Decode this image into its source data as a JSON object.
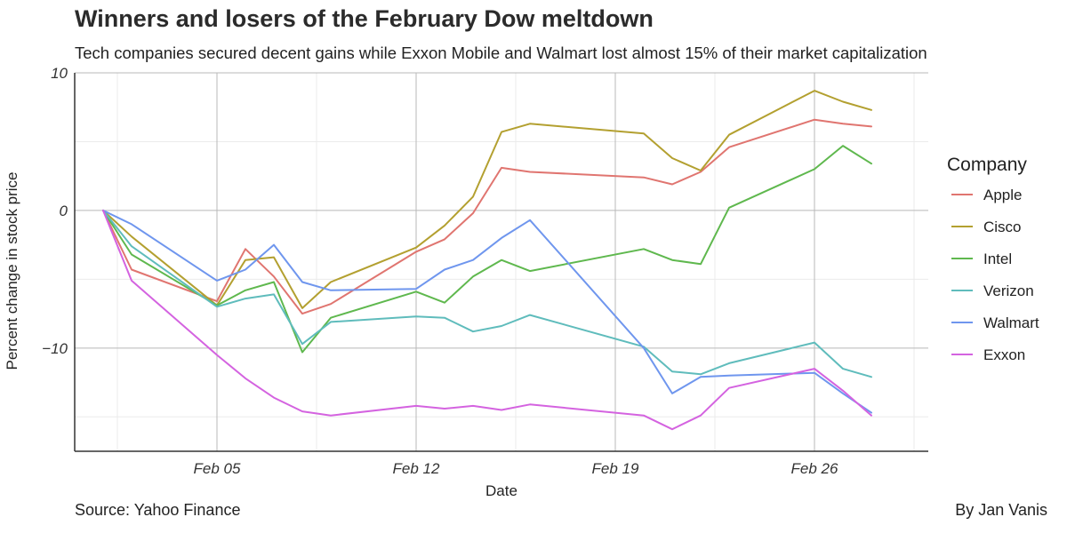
{
  "title": "Winners and losers of the February Dow meltdown",
  "subtitle": "Tech companies secured decent gains while Exxon Mobile and Walmart lost almost 15% of their market capitalization",
  "caption_left": "Source: Yahoo Finance",
  "caption_right": "By Jan Vanis",
  "chart_data": {
    "type": "line",
    "xlabel": "Date",
    "ylabel": "Percent change in stock price",
    "x_dates": [
      "2018-02-01",
      "2018-02-02",
      "2018-02-05",
      "2018-02-06",
      "2018-02-07",
      "2018-02-08",
      "2018-02-09",
      "2018-02-12",
      "2018-02-13",
      "2018-02-14",
      "2018-02-15",
      "2018-02-16",
      "2018-02-20",
      "2018-02-21",
      "2018-02-22",
      "2018-02-23",
      "2018-02-26",
      "2018-02-27",
      "2018-02-28"
    ],
    "xlim": [
      "2018-01-31",
      "2018-03-02"
    ],
    "ylim": [
      -17.5,
      10
    ],
    "x_ticks": [
      {
        "date": "2018-02-05",
        "label": "Feb 05"
      },
      {
        "date": "2018-02-12",
        "label": "Feb 12"
      },
      {
        "date": "2018-02-19",
        "label": "Feb 19"
      },
      {
        "date": "2018-02-26",
        "label": "Feb 26"
      }
    ],
    "y_ticks": [
      {
        "value": 10,
        "label": "10"
      },
      {
        "value": 0,
        "label": "0"
      },
      {
        "value": -10,
        "label": "−10"
      }
    ],
    "grid": true,
    "legend_title": "Company",
    "legend_position": "right",
    "series": [
      {
        "name": "Apple",
        "color": "#e07570",
        "values": [
          0,
          -4.3,
          -6.6,
          -2.8,
          -4.8,
          -7.5,
          -6.8,
          -3.0,
          -2.1,
          -0.2,
          3.1,
          2.8,
          2.4,
          1.9,
          2.8,
          4.6,
          6.6,
          6.3,
          6.1
        ]
      },
      {
        "name": "Cisco",
        "color": "#b3a030",
        "values": [
          0,
          -1.9,
          -6.9,
          -3.6,
          -3.4,
          -7.1,
          -5.2,
          -2.7,
          -1.1,
          1.0,
          5.7,
          6.3,
          5.6,
          3.8,
          2.9,
          5.5,
          8.7,
          7.9,
          7.3
        ]
      },
      {
        "name": "Intel",
        "color": "#5fb84e",
        "values": [
          0,
          -3.2,
          -6.9,
          -5.8,
          -5.2,
          -10.3,
          -7.8,
          -5.9,
          -6.7,
          -4.8,
          -3.6,
          -4.4,
          -2.8,
          -3.6,
          -3.9,
          0.2,
          3.0,
          4.7,
          3.4
        ]
      },
      {
        "name": "Verizon",
        "color": "#5fbcbc",
        "values": [
          0,
          -2.6,
          -7.0,
          -6.4,
          -6.1,
          -9.7,
          -8.1,
          -7.7,
          -7.8,
          -8.8,
          -8.4,
          -7.6,
          -9.9,
          -11.7,
          -11.9,
          -11.1,
          -9.6,
          -11.5,
          -12.1
        ]
      },
      {
        "name": "Walmart",
        "color": "#6f96ee",
        "values": [
          0,
          -1.0,
          -5.1,
          -4.3,
          -2.5,
          -5.2,
          -5.8,
          -5.7,
          -4.3,
          -3.6,
          -2.0,
          -0.7,
          -10.0,
          -13.3,
          -12.1,
          -12.0,
          -11.8,
          -13.3,
          -14.7
        ]
      },
      {
        "name": "Exxon",
        "color": "#d463e0",
        "values": [
          0,
          -5.1,
          -10.5,
          -12.2,
          -13.6,
          -14.6,
          -14.9,
          -14.2,
          -14.4,
          -14.2,
          -14.5,
          -14.1,
          -14.9,
          -15.9,
          -14.9,
          -12.9,
          -11.5,
          -13.1,
          -14.9
        ]
      }
    ]
  }
}
